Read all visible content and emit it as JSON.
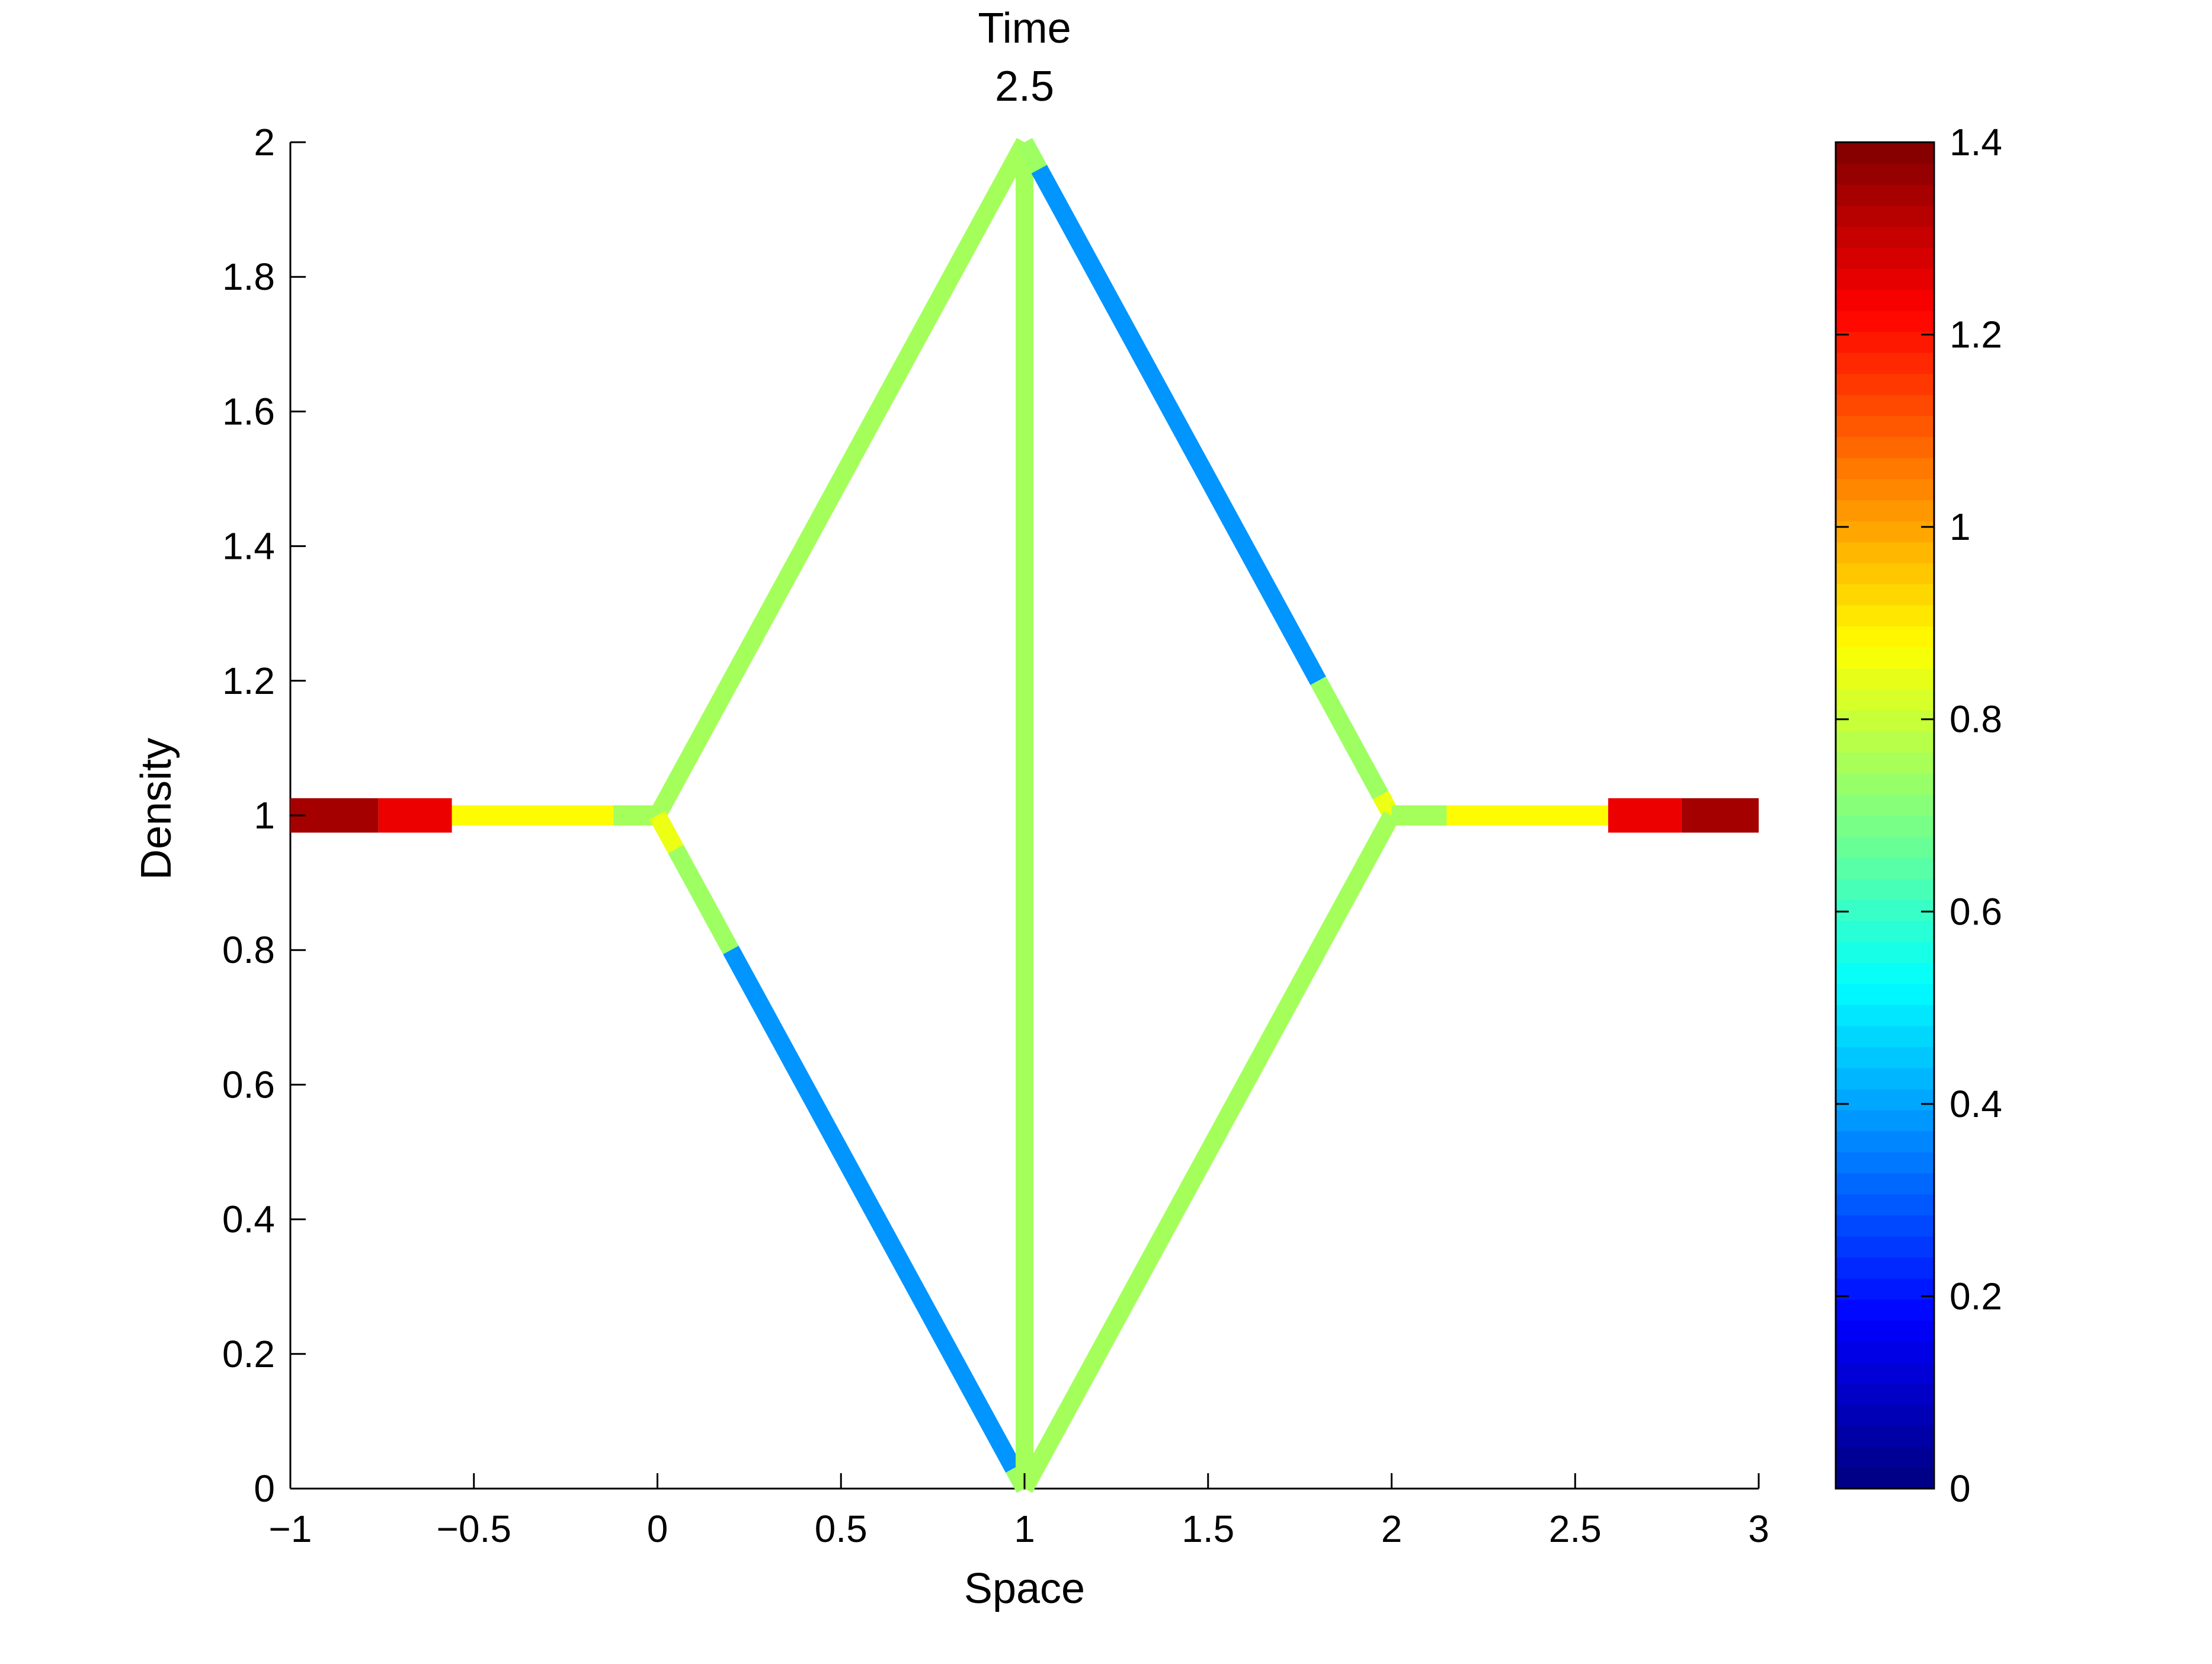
{
  "chart_data": {
    "type": "line",
    "title_lines": [
      "Time",
      "2.5"
    ],
    "xlabel": "Space",
    "ylabel": "Density",
    "xlim": [
      -1,
      3
    ],
    "ylim": [
      0,
      2
    ],
    "xticks": [
      -1,
      -0.5,
      0,
      0.5,
      1,
      1.5,
      2,
      2.5,
      3
    ],
    "xtick_labels": [
      "−1",
      "−0.5",
      "0",
      "0.5",
      "1",
      "1.5",
      "2",
      "2.5",
      "3"
    ],
    "yticks": [
      0,
      0.2,
      0.4,
      0.6,
      0.8,
      1,
      1.2,
      1.4,
      1.6,
      1.8,
      2
    ],
    "ytick_labels": [
      "0",
      "0.2",
      "0.4",
      "0.6",
      "0.8",
      "1",
      "1.2",
      "1.4",
      "1.6",
      "1.8",
      "2"
    ],
    "grid": false,
    "colorbar": {
      "min": 0,
      "max": 1.4,
      "ticks": [
        0,
        0.2,
        0.4,
        0.6,
        0.8,
        1,
        1.2,
        1.4
      ],
      "tick_labels": [
        "0",
        "0.2",
        "0.4",
        "0.6",
        "0.8",
        "1",
        "1.2",
        "1.4"
      ],
      "colormap": "jet"
    },
    "edges": [
      {
        "name": "left-incoming-road",
        "from": [
          -1,
          1
        ],
        "to": [
          0,
          1
        ],
        "segments": [
          {
            "range": [
              0,
              0.24
            ],
            "density": 1.35
          },
          {
            "range": [
              0.24,
              0.44
            ],
            "density": 1.25
          },
          {
            "range": [
              0.44,
              0.88
            ],
            "density": 0.88
          },
          {
            "range": [
              0.88,
              1.0
            ],
            "density": 0.75
          }
        ]
      },
      {
        "name": "upper-left-road",
        "from": [
          0,
          1
        ],
        "to": [
          1,
          2
        ],
        "segments": [
          {
            "range": [
              0,
              1
            ],
            "density": 0.75
          }
        ]
      },
      {
        "name": "lower-left-road",
        "from": [
          0,
          1
        ],
        "to": [
          1,
          0
        ],
        "segments": [
          {
            "range": [
              0,
              0.05
            ],
            "density": 0.85
          },
          {
            "range": [
              0.05,
              0.2
            ],
            "density": 0.74
          },
          {
            "range": [
              0.2,
              0.97
            ],
            "density": 0.38
          },
          {
            "range": [
              0.97,
              1.0
            ],
            "density": 0.74
          }
        ]
      },
      {
        "name": "center-vertical-road",
        "from": [
          1,
          0
        ],
        "to": [
          1,
          2
        ],
        "segments": [
          {
            "range": [
              0,
              1
            ],
            "density": 0.75
          }
        ]
      },
      {
        "name": "upper-right-road",
        "from": [
          1,
          2
        ],
        "to": [
          2,
          1
        ],
        "segments": [
          {
            "range": [
              0,
              0.04
            ],
            "density": 0.74
          },
          {
            "range": [
              0.04,
              0.8
            ],
            "density": 0.38
          },
          {
            "range": [
              0.8,
              0.97
            ],
            "density": 0.74
          },
          {
            "range": [
              0.97,
              1.0
            ],
            "density": 0.85
          }
        ]
      },
      {
        "name": "lower-right-road",
        "from": [
          1,
          0
        ],
        "to": [
          2,
          1
        ],
        "segments": [
          {
            "range": [
              0,
              1
            ],
            "density": 0.75
          }
        ]
      },
      {
        "name": "right-outgoing-road",
        "from": [
          2,
          1
        ],
        "to": [
          3,
          1
        ],
        "segments": [
          {
            "range": [
              0,
              0.15
            ],
            "density": 0.75
          },
          {
            "range": [
              0.15,
              0.59
            ],
            "density": 0.88
          },
          {
            "range": [
              0.59,
              0.79
            ],
            "density": 1.25
          },
          {
            "range": [
              0.79,
              1.0
            ],
            "density": 1.35
          }
        ]
      }
    ]
  }
}
